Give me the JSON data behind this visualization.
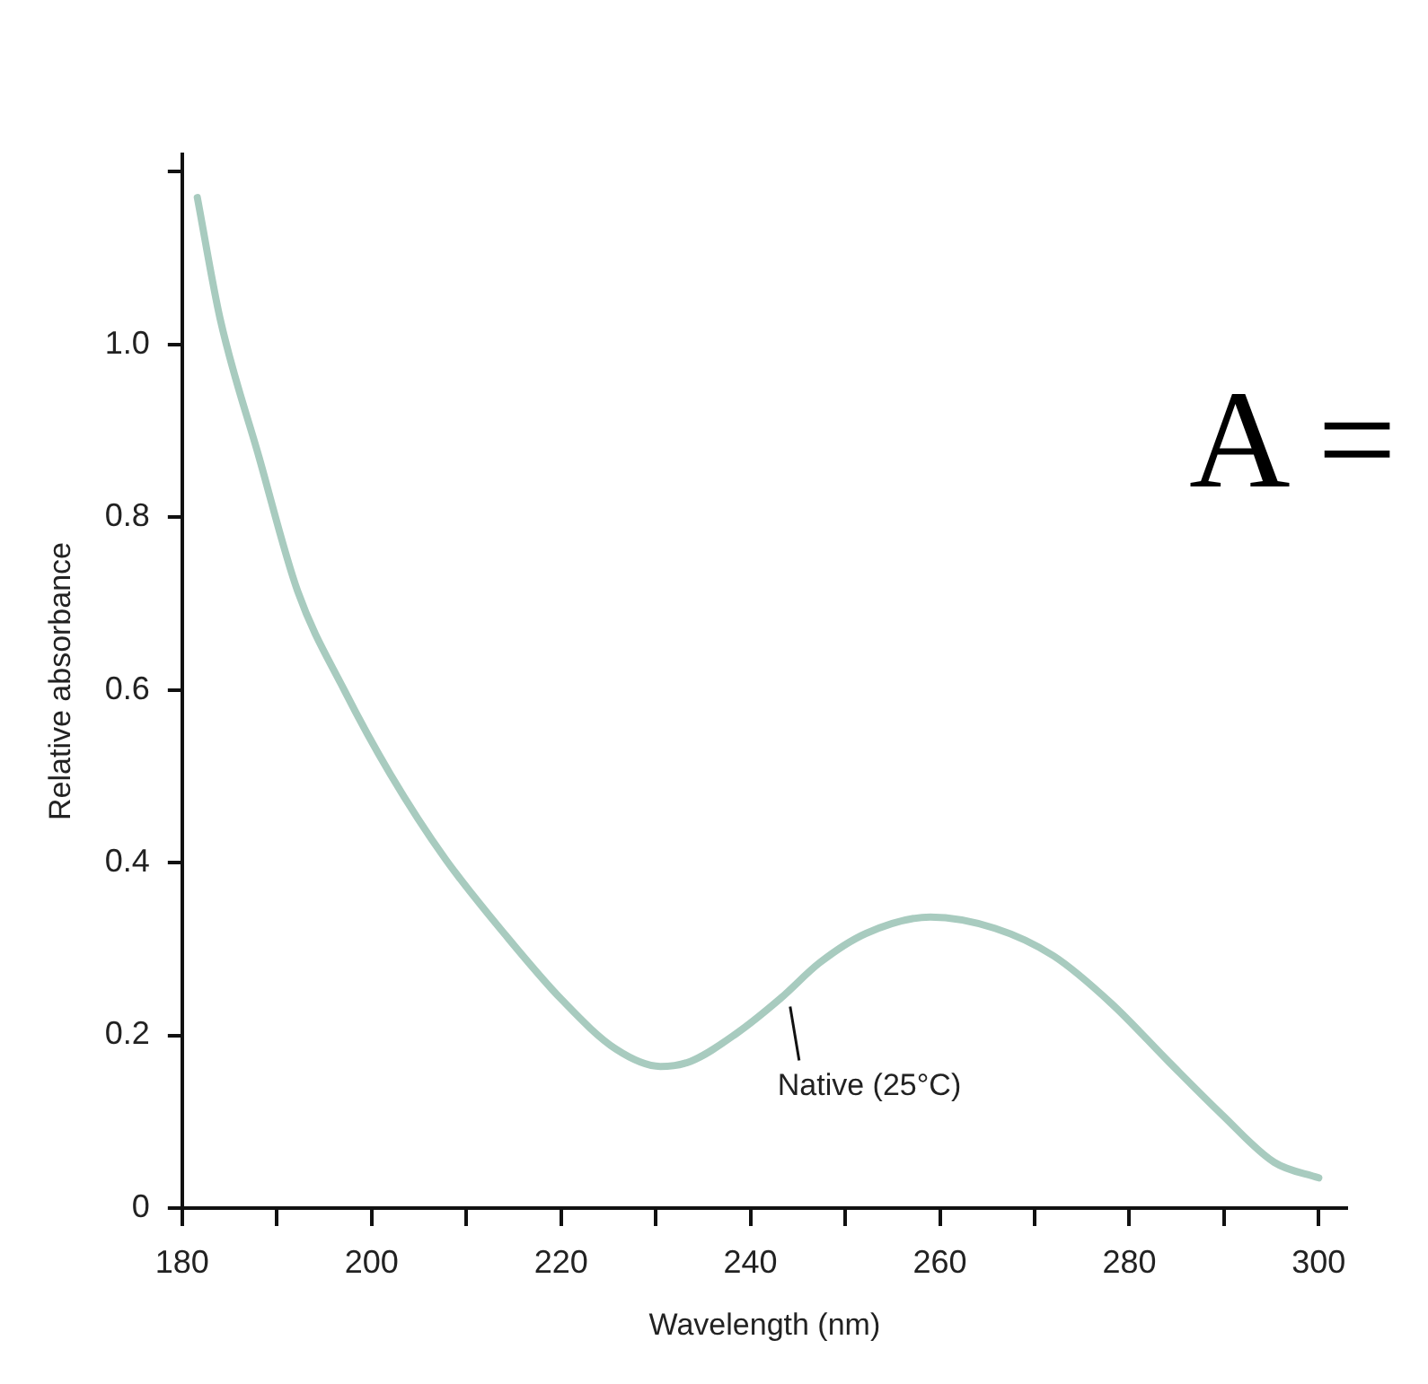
{
  "chart_data": {
    "type": "line",
    "xlabel": "Wavelength (nm)",
    "ylabel": "Relative absorbance",
    "x": [
      181.6,
      184,
      188.1,
      192.2,
      197.1,
      202,
      207.8,
      214.3,
      220.1,
      225.8,
      230.5,
      233.7,
      238.5,
      243.2,
      247.3,
      252.2,
      259,
      265.8,
      272,
      278.1,
      284.2,
      289.8,
      295.3,
      300
    ],
    "series": [
      {
        "color": "#a8cbbf",
        "values": [
          1.17,
          1.03,
          0.87,
          0.714,
          0.6,
          0.502,
          0.404,
          0.314,
          0.241,
          0.184,
          0.164,
          0.17,
          0.202,
          0.243,
          0.284,
          0.318,
          0.337,
          0.324,
          0.292,
          0.237,
          0.169,
          0.108,
          0.053,
          0.035
        ]
      }
    ],
    "xlim": [
      180,
      303
    ],
    "ylim": [
      0,
      1.22
    ],
    "xticks": [
      180,
      {
        "value": 190,
        "label": null
      },
      200,
      {
        "value": 210,
        "label": null
      },
      220,
      {
        "value": 230,
        "label": null
      },
      240,
      {
        "value": 250,
        "label": null
      },
      260,
      {
        "value": 270,
        "label": null
      },
      280,
      {
        "value": 290,
        "label": null
      },
      300
    ],
    "yticks": [
      0,
      {
        "value": 0.2,
        "label": "0.2"
      },
      {
        "value": 0.4,
        "label": "0.4"
      },
      {
        "value": 0.6,
        "label": "0.6"
      },
      {
        "value": 0.8,
        "label": "0.8"
      },
      {
        "value": 1,
        "label": "1.0"
      },
      {
        "value": 1.2,
        "label": null
      }
    ],
    "annotations": [
      {
        "text": "Native (25°C)",
        "x": 244,
        "y": 0.25
      },
      "A ="
    ],
    "grid": false,
    "legend": false,
    "marker": "none",
    "line_style": "solid"
  }
}
